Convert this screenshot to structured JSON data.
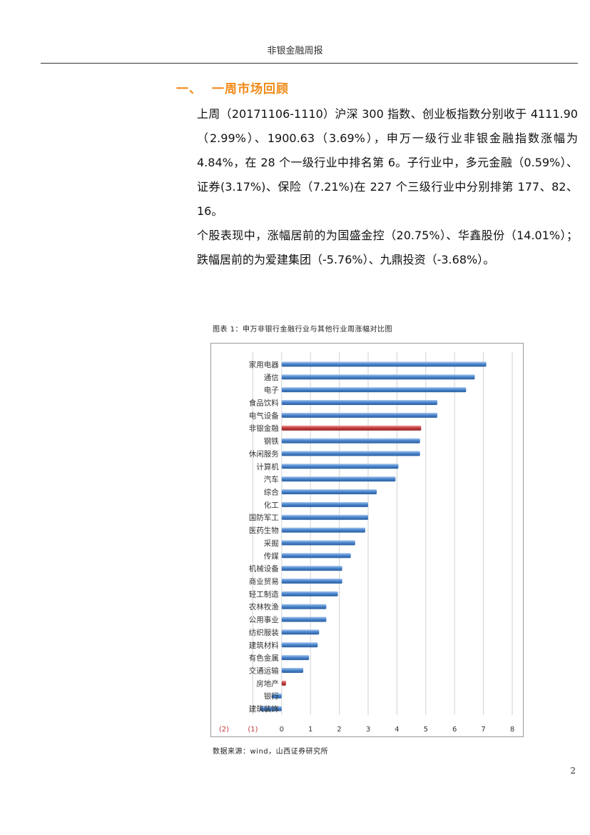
{
  "header": {
    "title": "非银金融周报"
  },
  "section": {
    "number": "一、",
    "title": "一周市场回顾"
  },
  "paragraphs": [
    "上周（20171106-1110）沪深 300 指数、创业板指数分别收于 4111.90（2.99%）、1900.63（3.69%），申万一级行业非银金融指数涨幅为 4.84%，在 28 个一级行业中排名第 6。子行业中，多元金融（0.59%）、证券(3.17%)、保险（7.21%)在 227 个三级行业中分别排第 177、82、16。",
    "个股表现中，涨幅居前的为国盛金控（20.75%）、华鑫股份（14.01%）；跌幅居前的为爱建集团（-5.76%）、九鼎投资（-3.68%）。"
  ],
  "chart_caption": "图表 1：申万非银行金融行业与其他行业周涨幅对比图",
  "source": "数据来源：wind，山西证券研究所",
  "page_number": "2",
  "colors": {
    "bar_blue": "#3f7bc6",
    "bar_red": "#c0393b",
    "section_orange": "#f28a18"
  },
  "chart_data": {
    "type": "bar",
    "orientation": "horizontal",
    "title": "",
    "xlabel": "",
    "ylabel": "",
    "grid": true,
    "xlim": [
      -2,
      8
    ],
    "x_tick_labels": [
      "(2)",
      "(1)",
      "0",
      "1",
      "2",
      "3",
      "4",
      "5",
      "6",
      "7",
      "8"
    ],
    "categories": [
      "家用电器",
      "通信",
      "电子",
      "食品饮料",
      "电气设备",
      "非银金融",
      "钢铁",
      "休闲服务",
      "计算机",
      "汽车",
      "综合",
      "化工",
      "国防军工",
      "医药生物",
      "采掘",
      "传媒",
      "机械设备",
      "商业贸易",
      "轻工制造",
      "农林牧渔",
      "公用事业",
      "纺织服装",
      "建筑材料",
      "有色金属",
      "交通运输",
      "房地产",
      "银行",
      "建筑装饰"
    ],
    "values": [
      7.1,
      6.7,
      6.4,
      5.4,
      5.4,
      4.84,
      4.8,
      4.8,
      4.05,
      3.95,
      3.3,
      3.0,
      3.0,
      2.9,
      2.55,
      2.4,
      2.1,
      2.1,
      1.95,
      1.55,
      1.55,
      1.3,
      1.25,
      0.95,
      0.75,
      0.15,
      -0.35,
      -0.75
    ],
    "highlight": [
      "非银金融",
      "房地产"
    ]
  }
}
